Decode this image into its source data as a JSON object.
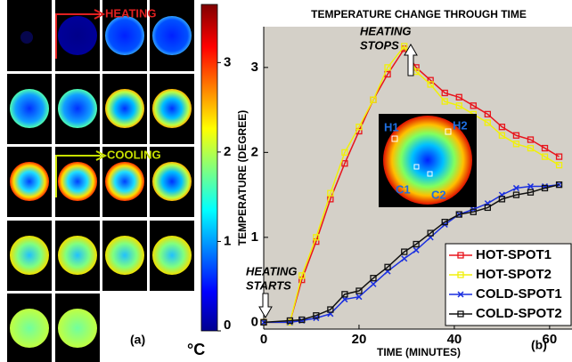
{
  "panel_a": {
    "arrow_labels": [
      "HEATING",
      "COOLING"
    ],
    "panel_label": "(a)",
    "unit": "°C",
    "colorbar": {
      "lim": [
        0,
        3.65
      ],
      "ticks": [
        0,
        1,
        2,
        3
      ]
    }
  },
  "chart_data": {
    "type": "line",
    "title": "TEMPERATURE CHANGE THROUGH TIME",
    "x_label": "TIME (MINUTES)",
    "y_label": "TEMPERATURE (DEGREE)",
    "panel_label": "(b)",
    "annotations": [
      [
        "HEATING",
        "STOPS"
      ],
      [
        "HEATING",
        "STARTS"
      ]
    ],
    "inset_labels": [
      "H1",
      "H2",
      "C1",
      "C2"
    ],
    "x": [
      0,
      5.5,
      8,
      11,
      14,
      17,
      20,
      23,
      26,
      29.5,
      32,
      35,
      38,
      41,
      44,
      47,
      50,
      53,
      56,
      59,
      62
    ],
    "series": [
      {
        "name": "HOT-SPOT1",
        "color": "#e8141c",
        "marker": "square",
        "values": [
          0,
          0,
          0.5,
          0.95,
          1.45,
          1.87,
          2.25,
          2.62,
          2.92,
          3.22,
          3.0,
          2.85,
          2.7,
          2.65,
          2.55,
          2.45,
          2.3,
          2.2,
          2.15,
          2.05,
          1.95
        ]
      },
      {
        "name": "HOT-SPOT2",
        "color": "#f0f00a",
        "marker": "square",
        "values": [
          0,
          0,
          0.55,
          1.0,
          1.52,
          2.0,
          2.3,
          2.62,
          3.0,
          3.25,
          2.95,
          2.8,
          2.6,
          2.55,
          2.45,
          2.35,
          2.2,
          2.1,
          2.05,
          1.95,
          1.85
        ]
      },
      {
        "name": "COLD-SPOT1",
        "color": "#1a2fe0",
        "marker": "x",
        "values": [
          0,
          0,
          0.02,
          0.05,
          0.1,
          0.27,
          0.3,
          0.45,
          0.6,
          0.75,
          0.85,
          1.0,
          1.15,
          1.27,
          1.33,
          1.4,
          1.5,
          1.58,
          1.6,
          1.6,
          1.62
        ]
      },
      {
        "name": "COLD-SPOT2",
        "color": "#111111",
        "marker": "square",
        "values": [
          0,
          0.02,
          0.03,
          0.08,
          0.15,
          0.33,
          0.37,
          0.52,
          0.65,
          0.83,
          0.92,
          1.05,
          1.18,
          1.27,
          1.3,
          1.35,
          1.45,
          1.5,
          1.53,
          1.58,
          1.62
        ]
      }
    ],
    "xlim": [
      0,
      64.7
    ],
    "ylim": [
      -0.08,
      3.48
    ],
    "xticks": [
      0,
      20,
      40,
      60
    ],
    "yticks": [
      0,
      1,
      2,
      3
    ],
    "grid": false,
    "legend": "lower right"
  }
}
